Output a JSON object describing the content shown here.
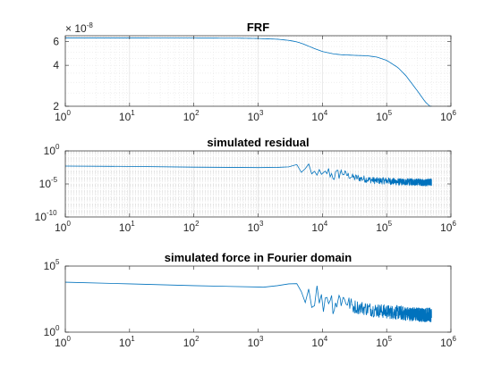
{
  "figure": {
    "background": "#ffffff"
  },
  "chart_data": [
    {
      "type": "line",
      "title": "FRF",
      "xlabel": "",
      "ylabel": "",
      "xscale": "log",
      "yscale": "log",
      "xlim": [
        1,
        1000000
      ],
      "ylim": [
        2e-08,
        6.6e-08
      ],
      "exponent_label": {
        "base": "× 10",
        "exp": "-8"
      },
      "xticks": [
        {
          "value": 1,
          "base": "10",
          "exp": "0"
        },
        {
          "value": 10,
          "base": "10",
          "exp": "1"
        },
        {
          "value": 100,
          "base": "10",
          "exp": "2"
        },
        {
          "value": 1000,
          "base": "10",
          "exp": "3"
        },
        {
          "value": 10000,
          "base": "10",
          "exp": "4"
        },
        {
          "value": 100000,
          "base": "10",
          "exp": "5"
        },
        {
          "value": 1000000,
          "base": "10",
          "exp": "6"
        }
      ],
      "yticks": [
        {
          "value": 2e-08,
          "label": "2"
        },
        {
          "value": 4e-08,
          "label": "4"
        },
        {
          "value": 6e-08,
          "label": "6"
        }
      ],
      "grid": true,
      "line_color": "#0072BD",
      "series": [
        {
          "style": "smooth",
          "x": [
            1,
            10,
            100,
            500,
            1000,
            2000,
            3000,
            4000,
            5000,
            6000,
            8000,
            10000,
            15000,
            20000,
            30000,
            50000,
            70000,
            100000,
            150000,
            200000,
            300000,
            400000,
            500000
          ],
          "y": [
            6.35e-08,
            6.35e-08,
            6.34e-08,
            6.33e-08,
            6.3e-08,
            6.22e-08,
            6.1e-08,
            5.95e-08,
            5.75e-08,
            5.55e-08,
            5.25e-08,
            5.05e-08,
            4.85e-08,
            4.78e-08,
            4.74e-08,
            4.7e-08,
            4.6e-08,
            4.35e-08,
            3.85e-08,
            3.35e-08,
            2.6e-08,
            2.15e-08,
            1.95e-08
          ]
        }
      ]
    },
    {
      "type": "line",
      "title": "simulated residual",
      "xlabel": "",
      "ylabel": "",
      "xscale": "log",
      "yscale": "log",
      "xlim": [
        1,
        1000000
      ],
      "ylim": [
        1e-10,
        1
      ],
      "xticks": [
        {
          "value": 1,
          "base": "10",
          "exp": "0"
        },
        {
          "value": 10,
          "base": "10",
          "exp": "1"
        },
        {
          "value": 100,
          "base": "10",
          "exp": "2"
        },
        {
          "value": 1000,
          "base": "10",
          "exp": "3"
        },
        {
          "value": 10000,
          "base": "10",
          "exp": "4"
        },
        {
          "value": 100000,
          "base": "10",
          "exp": "5"
        },
        {
          "value": 1000000,
          "base": "10",
          "exp": "6"
        }
      ],
      "yticks": [
        {
          "value": 1,
          "base": "10",
          "exp": "0"
        },
        {
          "value": 1e-05,
          "base": "10",
          "exp": "-5"
        },
        {
          "value": 1e-10,
          "base": "10",
          "exp": "-10"
        }
      ],
      "grid": true,
      "line_color": "#0072BD",
      "series": [
        {
          "style": "noisy",
          "x": [
            1,
            10,
            100,
            1000,
            2000,
            3000,
            4000,
            5000,
            6000,
            7000,
            8000,
            10000,
            12000,
            15000,
            20000,
            30000,
            50000,
            70000,
            100000,
            150000,
            200000,
            300000,
            400000,
            500000
          ],
          "y": [
            0.005,
            0.0045,
            0.0035,
            0.003,
            0.0032,
            0.0038,
            0.0045,
            0.0008,
            0.002,
            0.0001,
            0.0012,
            8e-05,
            0.0009,
            0.00015,
            0.0005,
            0.0001,
            5e-05,
            3e-05,
            3e-05,
            2e-05,
            2e-05,
            2e-05,
            1.5e-05,
            2e-05
          ]
        }
      ]
    },
    {
      "type": "line",
      "title": "simulated force in Fourier domain",
      "xlabel": "",
      "ylabel": "",
      "xscale": "log",
      "yscale": "log",
      "xlim": [
        1,
        1000000
      ],
      "ylim": [
        1,
        100000
      ],
      "xticks": [
        {
          "value": 1,
          "base": "10",
          "exp": "0"
        },
        {
          "value": 10,
          "base": "10",
          "exp": "1"
        },
        {
          "value": 100,
          "base": "10",
          "exp": "2"
        },
        {
          "value": 1000,
          "base": "10",
          "exp": "3"
        },
        {
          "value": 10000,
          "base": "10",
          "exp": "4"
        },
        {
          "value": 100000,
          "base": "10",
          "exp": "5"
        },
        {
          "value": 1000000,
          "base": "10",
          "exp": "6"
        }
      ],
      "yticks": [
        {
          "value": 1,
          "base": "10",
          "exp": "0"
        },
        {
          "value": 100000,
          "base": "10",
          "exp": "5"
        }
      ],
      "grid": false,
      "line_color": "#0072BD",
      "series": [
        {
          "style": "noisy",
          "x": [
            1,
            10,
            100,
            1000,
            1200,
            2000,
            3000,
            4000,
            5000,
            6000,
            7000,
            8000,
            10000,
            12000,
            15000,
            20000,
            30000,
            50000,
            70000,
            100000,
            150000,
            200000,
            300000,
            400000,
            500000
          ],
          "y": [
            6000,
            4500,
            3300,
            2600,
            2500,
            3300,
            4500,
            5200,
            700,
            2200,
            150,
            1300,
            120,
            800,
            140,
            400,
            90,
            60,
            45,
            35,
            30,
            25,
            22,
            20,
            20
          ]
        }
      ]
    }
  ]
}
